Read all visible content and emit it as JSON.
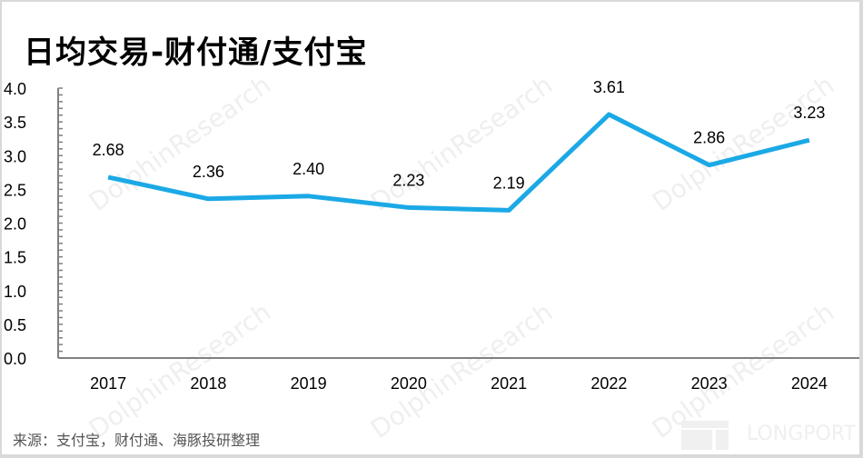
{
  "title": "日均交易-财付通/支付宝",
  "source": "来源：支付宝，财付通、海豚投研整理",
  "watermark": {
    "cn": "海豚投研",
    "en": "DolphinResearch",
    "brand": "LONGPORT"
  },
  "colors": {
    "line": "#1ba9e6",
    "axis": "#808080",
    "text": "#000000",
    "source_text": "#555555"
  },
  "chart_data": {
    "type": "line",
    "title": "日均交易-财付通/支付宝",
    "xlabel": "",
    "ylabel": "",
    "categories": [
      "2017",
      "2018",
      "2019",
      "2020",
      "2021",
      "2022",
      "2023",
      "2024"
    ],
    "series": [
      {
        "name": "日均交易",
        "values": [
          2.68,
          2.36,
          2.4,
          2.23,
          2.19,
          3.61,
          2.86,
          3.23
        ]
      }
    ],
    "data_labels": [
      "2.68",
      "2.36",
      "2.40",
      "2.23",
      "2.19",
      "3.61",
      "2.86",
      "3.23"
    ],
    "yticks": [
      "0.0",
      "0.5",
      "1.0",
      "1.5",
      "2.0",
      "2.5",
      "3.0",
      "3.5",
      "4.0"
    ],
    "ylim": [
      0,
      4.0
    ],
    "grid": false,
    "legend": "none"
  }
}
